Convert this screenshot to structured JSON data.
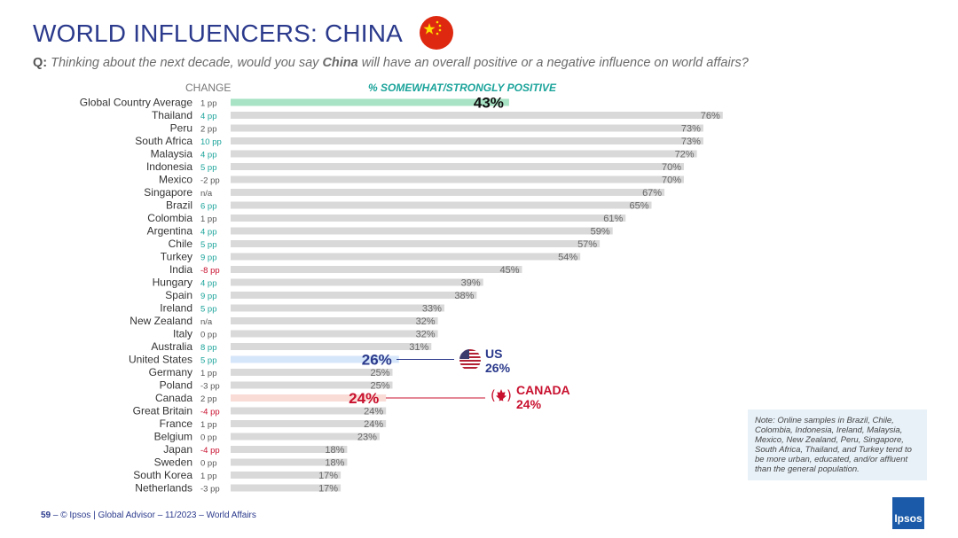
{
  "header": {
    "title": "WORLD INFLUENCERS: CHINA",
    "question_prefix": "Q:",
    "question_part1": "Thinking about the next decade, would you say ",
    "question_bold": "China",
    "question_part2": " will have an overall positive or a negative influence on world affairs?",
    "col_change": "CHANGE",
    "col_positive": "% SOMEWHAT/STRONGLY POSITIVE"
  },
  "callouts": {
    "us_name": "US",
    "us_value": "26%",
    "canada_name": "CANADA",
    "canada_value": "24%"
  },
  "note": "Note: Online samples in Brazil, Chile, Colombia, Indonesia, Ireland, Malaysia, Mexico, New Zealand, Peru, Singapore, South Africa, Thailand, and Turkey tend to be more urban, educated, and/or affluent than the general population.",
  "footer": {
    "page": "59",
    "text": "– © Ipsos | Global Advisor – 11/2023 – World Affairs"
  },
  "logo": "Ipsos",
  "colors": {
    "title": "#2b3a8c",
    "bar_default": "#d9d9d9",
    "bar_global": "#a7e3c4",
    "bar_us": "#d6e6fa",
    "bar_canada": "#f9dcd6",
    "change_positive": "#1aa39a",
    "change_negative": "#c8102e",
    "change_neutral": "#555555",
    "us_accent": "#2b3a8c",
    "canada_accent": "#c8102e"
  },
  "chart_data": {
    "type": "bar",
    "orientation": "horizontal",
    "title": "% SOMEWHAT/STRONGLY POSITIVE",
    "xlim": [
      0,
      100
    ],
    "categories": [
      "Global Country Average",
      "Thailand",
      "Peru",
      "South Africa",
      "Malaysia",
      "Indonesia",
      "Mexico",
      "Singapore",
      "Brazil",
      "Colombia",
      "Argentina",
      "Chile",
      "Turkey",
      "India",
      "Hungary",
      "Spain",
      "Ireland",
      "New Zealand",
      "Italy",
      "Australia",
      "United States",
      "Germany",
      "Poland",
      "Canada",
      "Great Britain",
      "France",
      "Belgium",
      "Japan",
      "Sweden",
      "South Korea",
      "Netherlands"
    ],
    "values": [
      43,
      76,
      73,
      73,
      72,
      70,
      70,
      67,
      65,
      61,
      59,
      57,
      54,
      45,
      39,
      38,
      33,
      32,
      32,
      31,
      26,
      25,
      25,
      24,
      24,
      24,
      23,
      18,
      18,
      17,
      17
    ],
    "labels": [
      "43%",
      "76%",
      "73%",
      "73%",
      "72%",
      "70%",
      "70%",
      "67%",
      "65%",
      "61%",
      "59%",
      "57%",
      "54%",
      "45%",
      "39%",
      "38%",
      "33%",
      "32%",
      "32%",
      "31%",
      "26%",
      "25%",
      "25%",
      "24%",
      "24%",
      "24%",
      "23%",
      "18%",
      "18%",
      "17%",
      "17%"
    ],
    "change": [
      "1 pp",
      "4 pp",
      "2 pp",
      "10 pp",
      "4 pp",
      "5 pp",
      "-2 pp",
      "n/a",
      "6 pp",
      "1 pp",
      "4 pp",
      "5 pp",
      "9 pp",
      "-8 pp",
      "4 pp",
      "9 pp",
      "5 pp",
      "n/a",
      "0 pp",
      "8 pp",
      "5 pp",
      "1 pp",
      "-3 pp",
      "2 pp",
      "-4 pp",
      "1 pp",
      "0 pp",
      "-4 pp",
      "0 pp",
      "1 pp",
      "-3 pp"
    ],
    "change_tone": [
      "neutral",
      "positive",
      "neutral",
      "positive",
      "positive",
      "positive",
      "neutral",
      "neutral",
      "positive",
      "neutral",
      "positive",
      "positive",
      "positive",
      "negative",
      "positive",
      "positive",
      "positive",
      "neutral",
      "neutral",
      "positive",
      "positive",
      "neutral",
      "neutral",
      "neutral",
      "negative",
      "neutral",
      "neutral",
      "negative",
      "neutral",
      "neutral",
      "neutral"
    ],
    "highlight": [
      "global",
      "",
      "",
      "",
      "",
      "",
      "",
      "",
      "",
      "",
      "",
      "",
      "",
      "",
      "",
      "",
      "",
      "",
      "",
      "",
      "us",
      "",
      "",
      "canada",
      "",
      "",
      "",
      "",
      "",
      "",
      ""
    ]
  }
}
